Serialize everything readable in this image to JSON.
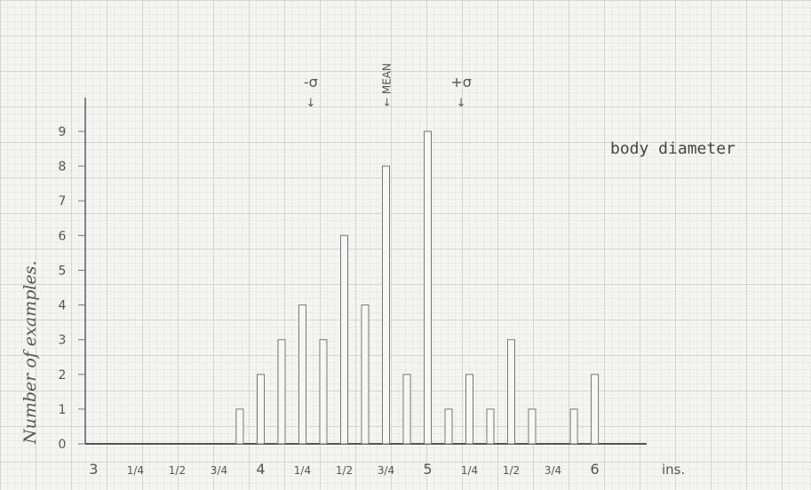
{
  "chart_data": {
    "type": "bar",
    "title": "body diameter",
    "ylabel": "Number of examples.",
    "unit_label": "ins.",
    "ylim": [
      0,
      9
    ],
    "y_ticks": [
      "0",
      "1",
      "2",
      "3",
      "4",
      "5",
      "6",
      "7",
      "8",
      "9"
    ],
    "x_tick_labels": [
      {
        "value": 3.0,
        "label": "3"
      },
      {
        "value": 3.25,
        "label": "1/4"
      },
      {
        "value": 3.5,
        "label": "1/2"
      },
      {
        "value": 3.75,
        "label": "3/4"
      },
      {
        "value": 4.0,
        "label": "4"
      },
      {
        "value": 4.25,
        "label": "1/4"
      },
      {
        "value": 4.5,
        "label": "1/2"
      },
      {
        "value": 4.75,
        "label": "3/4"
      },
      {
        "value": 5.0,
        "label": "5"
      },
      {
        "value": 5.25,
        "label": "1/4"
      },
      {
        "value": 5.5,
        "label": "1/2"
      },
      {
        "value": 5.75,
        "label": "3/4"
      },
      {
        "value": 6.0,
        "label": "6"
      }
    ],
    "x_range": [
      2.95,
      6.8
    ],
    "x": [
      3.875,
      4.0,
      4.125,
      4.25,
      4.375,
      4.5,
      4.625,
      4.75,
      4.875,
      5.0,
      5.125,
      5.25,
      5.375,
      5.5,
      5.625,
      5.75,
      5.875,
      6.0
    ],
    "values": [
      1,
      2,
      3,
      4,
      3,
      6,
      4,
      8,
      2,
      9,
      1,
      2,
      1,
      3,
      1,
      0,
      1,
      2
    ],
    "annotations": [
      {
        "label": "-σ",
        "x": 4.3
      },
      {
        "label": "MEAN",
        "x": 4.75
      },
      {
        "label": "+σ",
        "x": 5.2
      }
    ],
    "grid": true
  }
}
